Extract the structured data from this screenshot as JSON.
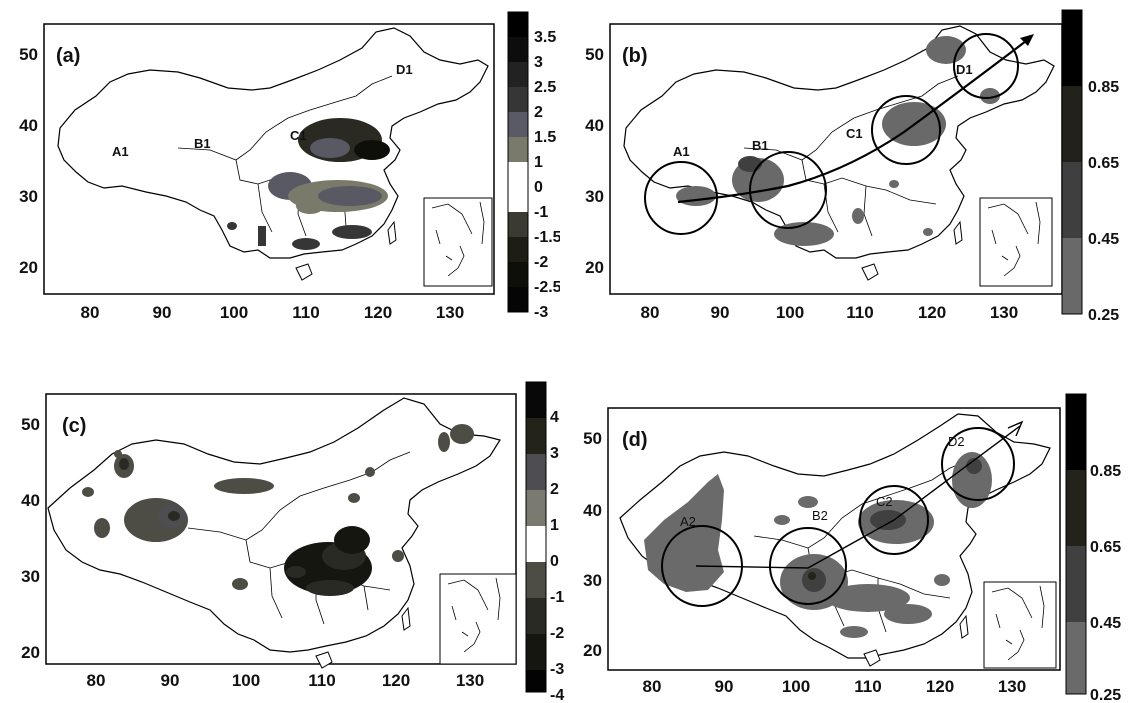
{
  "colors": {
    "outline": "#000000",
    "background": "#ffffff",
    "scale_a": [
      "#000000",
      "#0d0d0d",
      "#222222",
      "#363636",
      "#ffffff",
      "#ffffff",
      "#7a7a6a",
      "#5a5a66",
      "#3a3a30",
      "#1d1d14",
      "#0f0f0a",
      "#050505"
    ],
    "scale_b": [
      "#696969",
      "#3f3f3f",
      "#22221a",
      "#000000"
    ],
    "scale_c": [
      "#030303",
      "#161610",
      "#2a2a25",
      "#4d4d45",
      "#ffffff",
      "#ffffff",
      "#7a7a70",
      "#4e4e52",
      "#23231a",
      "#080808"
    ],
    "scale_d": [
      "#6a6a6a",
      "#404040",
      "#23231b",
      "#000000"
    ]
  },
  "panels": [
    {
      "id": "a",
      "label": "(a)",
      "x_ticks": [
        "80",
        "90",
        "100",
        "110",
        "120",
        "130"
      ],
      "y_ticks": [
        "50",
        "40",
        "30",
        "20"
      ],
      "colorbar_ticks": [
        "3.5",
        "3",
        "2.5",
        "2",
        "1.5",
        "1",
        "0",
        "-1",
        "-1.5",
        "-2",
        "-2.5",
        "-3"
      ],
      "regions": [
        "A1",
        "B1",
        "C1",
        "D1"
      ]
    },
    {
      "id": "b",
      "label": "(b)",
      "x_ticks": [
        "80",
        "90",
        "100",
        "110",
        "120",
        "130"
      ],
      "y_ticks": [
        "50",
        "40",
        "30",
        "20"
      ],
      "colorbar_ticks": [
        "0.85",
        "0.65",
        "0.45",
        "0.25"
      ],
      "regions": [
        "A1",
        "B1",
        "C1",
        "D1"
      ]
    },
    {
      "id": "c",
      "label": "(c)",
      "x_ticks": [
        "80",
        "90",
        "100",
        "110",
        "120",
        "130"
      ],
      "y_ticks": [
        "50",
        "40",
        "30",
        "20"
      ],
      "colorbar_ticks": [
        "4",
        "3",
        "2",
        "1",
        "0",
        "-1",
        "-2",
        "-3",
        "-4"
      ],
      "regions": []
    },
    {
      "id": "d",
      "label": "(d)",
      "x_ticks": [
        "80",
        "90",
        "100",
        "110",
        "120",
        "130"
      ],
      "y_ticks": [
        "50",
        "40",
        "30",
        "20"
      ],
      "colorbar_ticks": [
        "0.85",
        "0.65",
        "0.45",
        "0.25"
      ],
      "regions": [
        "A2",
        "B2",
        "C2",
        "D2"
      ]
    }
  ]
}
